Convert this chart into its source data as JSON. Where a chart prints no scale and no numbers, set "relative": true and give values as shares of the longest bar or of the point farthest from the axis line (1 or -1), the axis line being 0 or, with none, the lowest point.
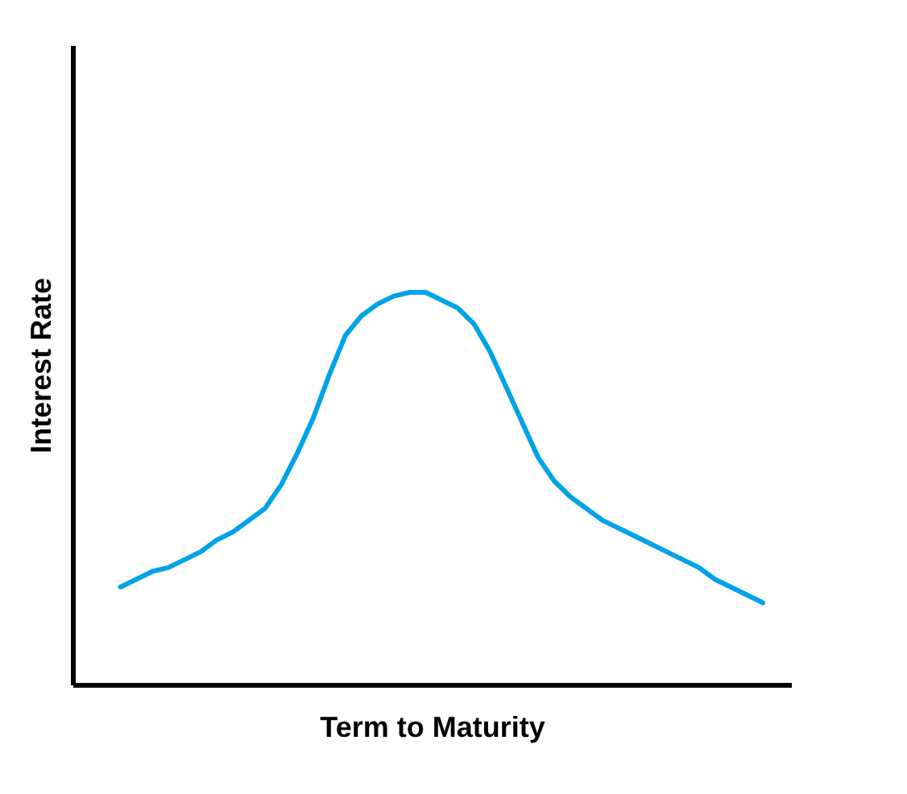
{
  "chart_data": {
    "type": "line",
    "relative": true,
    "xlabel": "Term to Maturity",
    "ylabel": "Interest Rate",
    "categories": [
      null,
      null,
      null,
      null,
      null,
      null,
      null,
      null,
      null,
      null,
      null,
      null,
      null,
      null,
      null,
      null,
      null,
      null,
      null,
      null,
      null,
      null,
      null,
      null,
      null,
      null,
      null,
      null,
      null,
      null,
      null,
      null,
      null,
      null,
      null,
      null,
      null,
      null,
      null,
      null,
      null
    ],
    "series": [
      {
        "color": "#00a2e8",
        "values": [
          0.25,
          0.27,
          0.29,
          0.3,
          0.32,
          0.34,
          0.37,
          0.39,
          0.42,
          0.45,
          0.51,
          0.59,
          0.68,
          0.79,
          0.89,
          0.94,
          0.97,
          0.99,
          1,
          1,
          0.98,
          0.96,
          0.92,
          0.85,
          0.76,
          0.67,
          0.58,
          0.52,
          0.48,
          0.45,
          0.42,
          0.4,
          0.38,
          0.36,
          0.34,
          0.32,
          0.3,
          0.27,
          0.25,
          0.23,
          0.21
        ]
      }
    ]
  }
}
